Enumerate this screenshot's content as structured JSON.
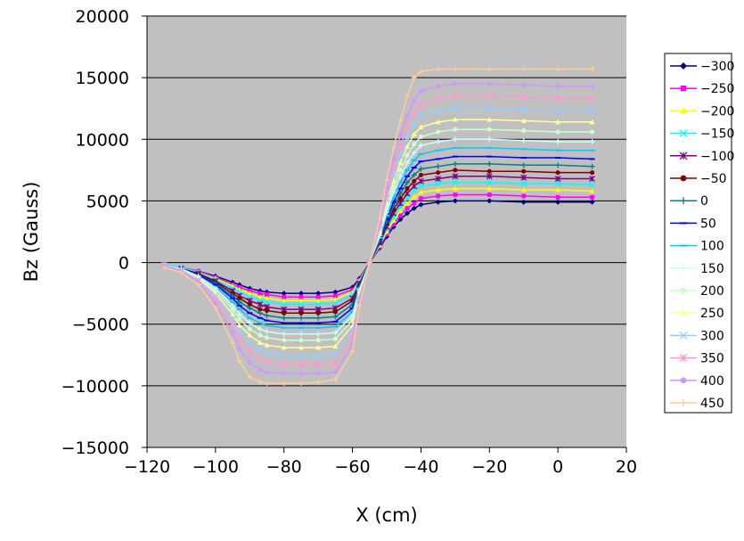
{
  "chart_data": {
    "type": "line",
    "title": "",
    "xlabel": "X (cm)",
    "ylabel": "Bz (Gauss)",
    "xlim": [
      -120,
      20
    ],
    "ylim": [
      -15000,
      20000
    ],
    "x_ticks": [
      -120,
      -100,
      -80,
      -60,
      -40,
      -20,
      0,
      20
    ],
    "y_ticks": [
      20000,
      15000,
      10000,
      5000,
      0,
      -5000,
      -10000,
      -15000
    ],
    "x_tick_labels": [
      "−120",
      "−100",
      "−80",
      "−60",
      "−40",
      "−20",
      "0",
      "20"
    ],
    "y_tick_labels": [
      "20000",
      "15000",
      "10000",
      "5000",
      "0",
      "−5000",
      "−10000",
      "−15000"
    ],
    "grid": "horizontal",
    "legend_position": "right",
    "plot_background": "#c0c0c0",
    "x": [
      -115,
      -110,
      -105,
      -100,
      -95,
      -93,
      -90,
      -87,
      -85,
      -80,
      -75,
      -70,
      -65,
      -60,
      -58,
      -55,
      -52,
      -50,
      -48,
      -46,
      -44,
      -42,
      -40,
      -35,
      -30,
      -20,
      -10,
      0,
      10
    ],
    "series": [
      {
        "name": "-300",
        "color": "#000080",
        "marker": "diamond",
        "values": [
          -200,
          -400,
          -700,
          -1100,
          -1600,
          -1800,
          -2100,
          -2300,
          -2400,
          -2500,
          -2500,
          -2500,
          -2400,
          -2000,
          -1300,
          0,
          1200,
          2100,
          2900,
          3500,
          4000,
          4400,
          4700,
          4900,
          5000,
          5000,
          4900,
          4900,
          4900
        ]
      },
      {
        "name": "-250",
        "color": "#ff00ff",
        "marker": "square",
        "values": [
          -200,
          -400,
          -700,
          -1200,
          -1800,
          -2000,
          -2300,
          -2500,
          -2600,
          -2800,
          -2800,
          -2800,
          -2700,
          -2200,
          -1400,
          0,
          1300,
          2300,
          3100,
          3800,
          4400,
          4800,
          5200,
          5400,
          5500,
          5500,
          5400,
          5300,
          5300
        ]
      },
      {
        "name": "-200",
        "color": "#ffff00",
        "marker": "triangle",
        "values": [
          -200,
          -400,
          -800,
          -1300,
          -1900,
          -2200,
          -2500,
          -2800,
          -2900,
          -3100,
          -3100,
          -3100,
          -3000,
          -2400,
          -1500,
          0,
          1400,
          2500,
          3400,
          4200,
          4800,
          5300,
          5700,
          5900,
          6000,
          6000,
          5900,
          5900,
          5800
        ]
      },
      {
        "name": "-150",
        "color": "#00ffff",
        "marker": "x",
        "values": [
          -200,
          -400,
          -800,
          -1400,
          -2100,
          -2400,
          -2800,
          -3100,
          -3200,
          -3400,
          -3400,
          -3400,
          -3300,
          -2600,
          -1600,
          0,
          1500,
          2700,
          3700,
          4500,
          5200,
          5800,
          6200,
          6400,
          6500,
          6500,
          6400,
          6400,
          6300
        ]
      },
      {
        "name": "-100",
        "color": "#800080",
        "marker": "star",
        "values": [
          -200,
          -500,
          -900,
          -1500,
          -2300,
          -2700,
          -3100,
          -3400,
          -3600,
          -3800,
          -3800,
          -3800,
          -3700,
          -2900,
          -1700,
          0,
          1600,
          2900,
          4000,
          4800,
          5600,
          6200,
          6600,
          6800,
          7000,
          7000,
          6900,
          6800,
          6800
        ]
      },
      {
        "name": "-50",
        "color": "#800000",
        "marker": "circle",
        "values": [
          -200,
          -500,
          -900,
          -1600,
          -2500,
          -2900,
          -3400,
          -3800,
          -3900,
          -4100,
          -4100,
          -4100,
          -4000,
          -3100,
          -1800,
          0,
          1700,
          3100,
          4300,
          5200,
          6000,
          6600,
          7100,
          7300,
          7500,
          7400,
          7400,
          7300,
          7300
        ]
      },
      {
        "name": "0",
        "color": "#008080",
        "marker": "plus",
        "values": [
          -200,
          -500,
          -1000,
          -1700,
          -2700,
          -3200,
          -3700,
          -4100,
          -4300,
          -4500,
          -4500,
          -4500,
          -4400,
          -3400,
          -1900,
          0,
          1800,
          3300,
          4600,
          5600,
          6500,
          7100,
          7600,
          7800,
          8000,
          8000,
          7900,
          7900,
          7800
        ]
      },
      {
        "name": "50",
        "color": "#0000ff",
        "marker": "dash",
        "values": [
          -200,
          -500,
          -1000,
          -1800,
          -2900,
          -3500,
          -4100,
          -4500,
          -4700,
          -4900,
          -4900,
          -4900,
          -4800,
          -3700,
          -2000,
          0,
          1900,
          3500,
          4900,
          6000,
          7000,
          7700,
          8200,
          8400,
          8600,
          8600,
          8500,
          8500,
          8400
        ]
      },
      {
        "name": "100",
        "color": "#00ccff",
        "marker": "dash",
        "values": [
          -200,
          -500,
          -1100,
          -2000,
          -3200,
          -3800,
          -4500,
          -4900,
          -5100,
          -5300,
          -5300,
          -5300,
          -5200,
          -4000,
          -2100,
          0,
          2000,
          3800,
          5300,
          6500,
          7500,
          8300,
          8800,
          9100,
          9300,
          9300,
          9200,
          9100,
          9100
        ]
      },
      {
        "name": "150",
        "color": "#ccffff",
        "marker": "plus",
        "values": [
          -200,
          -500,
          -1100,
          -2100,
          -3500,
          -4200,
          -4900,
          -5400,
          -5600,
          -5800,
          -5800,
          -5800,
          -5700,
          -4300,
          -2200,
          0,
          2200,
          4100,
          5700,
          7000,
          8100,
          8900,
          9500,
          9800,
          10000,
          10000,
          9900,
          9800,
          9800
        ]
      },
      {
        "name": "200",
        "color": "#ccffcc",
        "marker": "circle",
        "values": [
          -200,
          -600,
          -1200,
          -2300,
          -3800,
          -4600,
          -5400,
          -5900,
          -6100,
          -6300,
          -6300,
          -6300,
          -6200,
          -4700,
          -2400,
          0,
          2400,
          4400,
          6100,
          7500,
          8700,
          9600,
          10200,
          10600,
          10800,
          10800,
          10700,
          10600,
          10600
        ]
      },
      {
        "name": "250",
        "color": "#ffff99",
        "marker": "triangle",
        "values": [
          -200,
          -600,
          -1300,
          -2500,
          -4200,
          -5100,
          -5900,
          -6500,
          -6700,
          -6900,
          -6900,
          -6900,
          -6800,
          -5100,
          -2600,
          0,
          2600,
          4800,
          6600,
          8100,
          9400,
          10400,
          11000,
          11400,
          11600,
          11600,
          11500,
          11400,
          11400
        ]
      },
      {
        "name": "300",
        "color": "#99ccff",
        "marker": "x",
        "values": [
          -200,
          -600,
          -1400,
          -2700,
          -4600,
          -5600,
          -6500,
          -7100,
          -7400,
          -7600,
          -7600,
          -7600,
          -7500,
          -5600,
          -2800,
          0,
          2800,
          5200,
          7100,
          8700,
          10100,
          11200,
          11900,
          12300,
          12500,
          12500,
          12400,
          12300,
          12300
        ]
      },
      {
        "name": "350",
        "color": "#ff99cc",
        "marker": "star",
        "values": [
          -300,
          -700,
          -1500,
          -3000,
          -5100,
          -6200,
          -7200,
          -7800,
          -8100,
          -8300,
          -8300,
          -8300,
          -8200,
          -6100,
          -3000,
          0,
          3000,
          5600,
          7700,
          9400,
          10900,
          12100,
          12800,
          13300,
          13500,
          13500,
          13400,
          13300,
          13300
        ]
      },
      {
        "name": "400",
        "color": "#cc99ff",
        "marker": "circle",
        "values": [
          -300,
          -700,
          -1600,
          -3300,
          -5700,
          -7000,
          -8100,
          -8700,
          -8900,
          -9000,
          -9000,
          -9000,
          -8900,
          -6700,
          -3300,
          0,
          3300,
          6100,
          8400,
          10300,
          11900,
          13100,
          13900,
          14300,
          14500,
          14500,
          14400,
          14300,
          14300
        ]
      },
      {
        "name": "450",
        "color": "#ffcc99",
        "marker": "plus",
        "values": [
          -400,
          -800,
          -1800,
          -3700,
          -6500,
          -8000,
          -9300,
          -9700,
          -9800,
          -9800,
          -9800,
          -9700,
          -9500,
          -7200,
          -3500,
          0,
          3600,
          6700,
          9300,
          11500,
          13500,
          15000,
          15500,
          15700,
          15700,
          15700,
          15700,
          15700,
          15700
        ]
      }
    ]
  }
}
